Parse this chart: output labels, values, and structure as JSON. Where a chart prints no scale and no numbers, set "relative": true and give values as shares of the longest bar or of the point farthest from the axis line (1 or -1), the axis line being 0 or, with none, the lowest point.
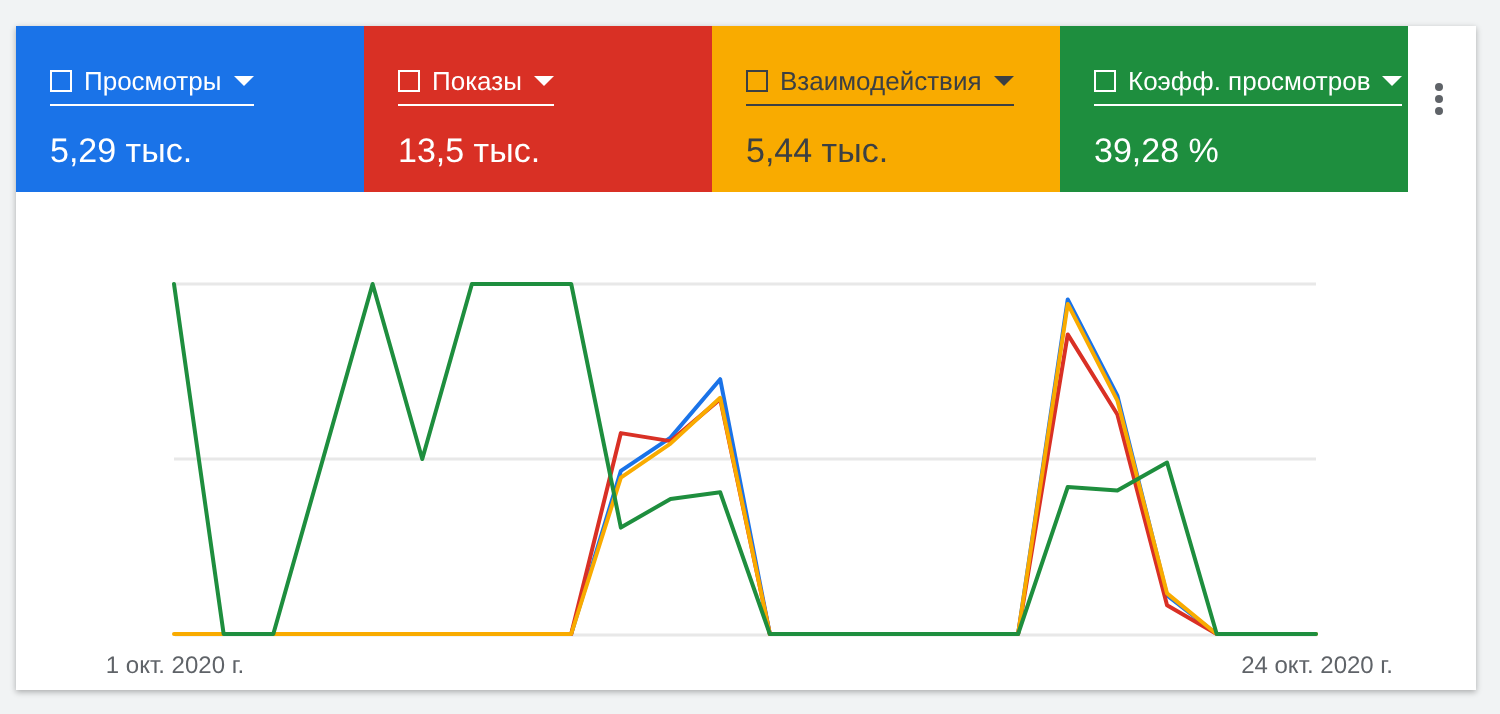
{
  "chart_data": {
    "type": "line",
    "relative": true,
    "legend": "top",
    "x": [
      "2020-10-01",
      "2020-10-02",
      "2020-10-03",
      "2020-10-04",
      "2020-10-05",
      "2020-10-06",
      "2020-10-07",
      "2020-10-08",
      "2020-10-09",
      "2020-10-10",
      "2020-10-11",
      "2020-10-12",
      "2020-10-13",
      "2020-10-14",
      "2020-10-15",
      "2020-10-16",
      "2020-10-17",
      "2020-10-18",
      "2020-10-19",
      "2020-10-20",
      "2020-10-21",
      "2020-10-22",
      "2020-10-23",
      "2020-10-24"
    ],
    "xlim": [
      "2020-10-01",
      "2020-10-24"
    ],
    "xticks": [
      {
        "value": "2020-10-01",
        "label": "1 окт. 2020 г."
      },
      {
        "value": "2020-10-24",
        "label": "24 окт. 2020 г."
      }
    ],
    "annotations": [
      "5,29 тыс.",
      "13,5 тыс.",
      "5,44 тыс.",
      "39,28 %"
    ],
    "ref_lines": [
      {
        "axis": "y",
        "value": 0.5,
        "color": "#e8e8e8"
      },
      {
        "axis": "y",
        "value": 1,
        "color": "#e8e8e8"
      }
    ],
    "series": [
      {
        "name": "Просмотры",
        "color": "#1a73e8",
        "values": [
          null,
          null,
          null,
          null,
          null,
          null,
          null,
          null,
          0,
          0.466,
          0.561,
          0.728,
          0,
          null,
          null,
          null,
          null,
          0,
          0.956,
          0.681,
          0.11,
          0,
          null,
          null
        ]
      },
      {
        "name": "Показы",
        "color": "#d93025",
        "values": [
          null,
          null,
          null,
          null,
          null,
          null,
          null,
          null,
          0,
          0.574,
          0.551,
          0.671,
          0,
          null,
          null,
          null,
          null,
          0,
          0.856,
          0.627,
          0.082,
          0,
          null,
          null
        ]
      },
      {
        "name": "Взаимодействия",
        "color": "#f9ab00",
        "values": [
          0,
          0,
          0,
          0,
          0,
          0,
          0,
          0,
          0,
          0.447,
          0.544,
          0.675,
          0,
          0,
          0,
          0,
          0,
          0,
          0.943,
          0.667,
          0.116,
          0,
          0,
          0
        ]
      },
      {
        "name": "Коэфф. просмотров",
        "color": "#1e8e3e",
        "values": [
          1,
          0,
          0,
          0.5,
          1,
          0.5,
          1,
          1,
          1,
          0.304,
          0.386,
          0.405,
          0,
          0,
          0,
          0,
          0,
          0,
          0.42,
          0.41,
          0.49,
          0,
          0,
          0
        ]
      }
    ]
  }
}
